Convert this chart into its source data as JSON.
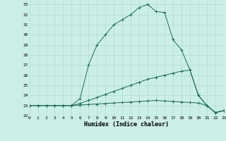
{
  "title": "",
  "xlabel": "Humidex (Indice chaleur)",
  "ylabel": "",
  "bg_color": "#cceee8",
  "line_color": "#1a6b5a",
  "grid_color": "#aaddcc",
  "xlim": [
    0,
    23
  ],
  "ylim": [
    22,
    33.3
  ],
  "yticks": [
    22,
    23,
    24,
    25,
    26,
    27,
    28,
    29,
    30,
    31,
    32,
    33
  ],
  "xticks": [
    0,
    1,
    2,
    3,
    4,
    5,
    6,
    7,
    8,
    9,
    10,
    11,
    12,
    13,
    14,
    15,
    16,
    17,
    18,
    19,
    20,
    21,
    22,
    23
  ],
  "series": [
    {
      "x": [
        0,
        1,
        2,
        3,
        4,
        5,
        6,
        7,
        8,
        9,
        10,
        11,
        12,
        13,
        14,
        15,
        16,
        17,
        18,
        19,
        20,
        21,
        22,
        23
      ],
      "y": [
        23.0,
        23.0,
        23.0,
        23.0,
        23.0,
        23.0,
        23.7,
        27.0,
        29.0,
        30.0,
        31.0,
        31.5,
        32.0,
        32.7,
        33.0,
        32.3,
        32.2,
        29.5,
        28.5,
        26.5,
        24.0,
        23.0,
        22.3,
        22.5
      ]
    },
    {
      "x": [
        0,
        1,
        2,
        3,
        4,
        5,
        6,
        7,
        8,
        9,
        10,
        11,
        12,
        13,
        14,
        15,
        16,
        17,
        18,
        19,
        20,
        21,
        22,
        23
      ],
      "y": [
        23.0,
        23.0,
        23.0,
        23.0,
        23.0,
        23.0,
        23.2,
        23.5,
        23.8,
        24.1,
        24.4,
        24.7,
        25.0,
        25.3,
        25.6,
        25.8,
        26.0,
        26.2,
        26.4,
        26.5,
        24.0,
        23.0,
        22.3,
        22.5
      ]
    },
    {
      "x": [
        0,
        1,
        2,
        3,
        4,
        5,
        6,
        7,
        8,
        9,
        10,
        11,
        12,
        13,
        14,
        15,
        16,
        17,
        18,
        19,
        20,
        21,
        22,
        23
      ],
      "y": [
        23.0,
        23.0,
        23.0,
        23.0,
        23.0,
        23.0,
        23.05,
        23.1,
        23.15,
        23.2,
        23.25,
        23.3,
        23.35,
        23.4,
        23.45,
        23.5,
        23.45,
        23.4,
        23.35,
        23.3,
        23.25,
        23.0,
        22.3,
        22.5
      ]
    }
  ]
}
